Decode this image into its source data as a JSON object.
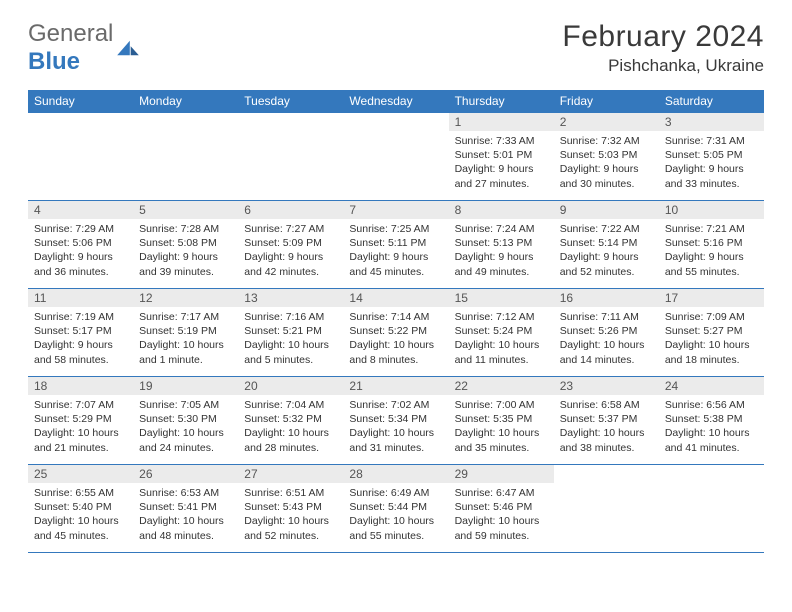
{
  "brand": {
    "word1": "General",
    "word2": "Blue"
  },
  "title": "February 2024",
  "location": "Pishchanka, Ukraine",
  "colors": {
    "headerBg": "#3478bd",
    "headerText": "#ffffff",
    "dayNumBg": "#ebebeb",
    "dayNumText": "#555555",
    "bodyText": "#333333",
    "rule": "#3478bd",
    "logoGray": "#6a6a6a",
    "logoBlue": "#3478bd"
  },
  "weekdays": [
    "Sunday",
    "Monday",
    "Tuesday",
    "Wednesday",
    "Thursday",
    "Friday",
    "Saturday"
  ],
  "weeks": [
    [
      null,
      null,
      null,
      null,
      {
        "n": "1",
        "sunrise": "Sunrise: 7:33 AM",
        "sunset": "Sunset: 5:01 PM",
        "day1": "Daylight: 9 hours",
        "day2": "and 27 minutes."
      },
      {
        "n": "2",
        "sunrise": "Sunrise: 7:32 AM",
        "sunset": "Sunset: 5:03 PM",
        "day1": "Daylight: 9 hours",
        "day2": "and 30 minutes."
      },
      {
        "n": "3",
        "sunrise": "Sunrise: 7:31 AM",
        "sunset": "Sunset: 5:05 PM",
        "day1": "Daylight: 9 hours",
        "day2": "and 33 minutes."
      }
    ],
    [
      {
        "n": "4",
        "sunrise": "Sunrise: 7:29 AM",
        "sunset": "Sunset: 5:06 PM",
        "day1": "Daylight: 9 hours",
        "day2": "and 36 minutes."
      },
      {
        "n": "5",
        "sunrise": "Sunrise: 7:28 AM",
        "sunset": "Sunset: 5:08 PM",
        "day1": "Daylight: 9 hours",
        "day2": "and 39 minutes."
      },
      {
        "n": "6",
        "sunrise": "Sunrise: 7:27 AM",
        "sunset": "Sunset: 5:09 PM",
        "day1": "Daylight: 9 hours",
        "day2": "and 42 minutes."
      },
      {
        "n": "7",
        "sunrise": "Sunrise: 7:25 AM",
        "sunset": "Sunset: 5:11 PM",
        "day1": "Daylight: 9 hours",
        "day2": "and 45 minutes."
      },
      {
        "n": "8",
        "sunrise": "Sunrise: 7:24 AM",
        "sunset": "Sunset: 5:13 PM",
        "day1": "Daylight: 9 hours",
        "day2": "and 49 minutes."
      },
      {
        "n": "9",
        "sunrise": "Sunrise: 7:22 AM",
        "sunset": "Sunset: 5:14 PM",
        "day1": "Daylight: 9 hours",
        "day2": "and 52 minutes."
      },
      {
        "n": "10",
        "sunrise": "Sunrise: 7:21 AM",
        "sunset": "Sunset: 5:16 PM",
        "day1": "Daylight: 9 hours",
        "day2": "and 55 minutes."
      }
    ],
    [
      {
        "n": "11",
        "sunrise": "Sunrise: 7:19 AM",
        "sunset": "Sunset: 5:17 PM",
        "day1": "Daylight: 9 hours",
        "day2": "and 58 minutes."
      },
      {
        "n": "12",
        "sunrise": "Sunrise: 7:17 AM",
        "sunset": "Sunset: 5:19 PM",
        "day1": "Daylight: 10 hours",
        "day2": "and 1 minute."
      },
      {
        "n": "13",
        "sunrise": "Sunrise: 7:16 AM",
        "sunset": "Sunset: 5:21 PM",
        "day1": "Daylight: 10 hours",
        "day2": "and 5 minutes."
      },
      {
        "n": "14",
        "sunrise": "Sunrise: 7:14 AM",
        "sunset": "Sunset: 5:22 PM",
        "day1": "Daylight: 10 hours",
        "day2": "and 8 minutes."
      },
      {
        "n": "15",
        "sunrise": "Sunrise: 7:12 AM",
        "sunset": "Sunset: 5:24 PM",
        "day1": "Daylight: 10 hours",
        "day2": "and 11 minutes."
      },
      {
        "n": "16",
        "sunrise": "Sunrise: 7:11 AM",
        "sunset": "Sunset: 5:26 PM",
        "day1": "Daylight: 10 hours",
        "day2": "and 14 minutes."
      },
      {
        "n": "17",
        "sunrise": "Sunrise: 7:09 AM",
        "sunset": "Sunset: 5:27 PM",
        "day1": "Daylight: 10 hours",
        "day2": "and 18 minutes."
      }
    ],
    [
      {
        "n": "18",
        "sunrise": "Sunrise: 7:07 AM",
        "sunset": "Sunset: 5:29 PM",
        "day1": "Daylight: 10 hours",
        "day2": "and 21 minutes."
      },
      {
        "n": "19",
        "sunrise": "Sunrise: 7:05 AM",
        "sunset": "Sunset: 5:30 PM",
        "day1": "Daylight: 10 hours",
        "day2": "and 24 minutes."
      },
      {
        "n": "20",
        "sunrise": "Sunrise: 7:04 AM",
        "sunset": "Sunset: 5:32 PM",
        "day1": "Daylight: 10 hours",
        "day2": "and 28 minutes."
      },
      {
        "n": "21",
        "sunrise": "Sunrise: 7:02 AM",
        "sunset": "Sunset: 5:34 PM",
        "day1": "Daylight: 10 hours",
        "day2": "and 31 minutes."
      },
      {
        "n": "22",
        "sunrise": "Sunrise: 7:00 AM",
        "sunset": "Sunset: 5:35 PM",
        "day1": "Daylight: 10 hours",
        "day2": "and 35 minutes."
      },
      {
        "n": "23",
        "sunrise": "Sunrise: 6:58 AM",
        "sunset": "Sunset: 5:37 PM",
        "day1": "Daylight: 10 hours",
        "day2": "and 38 minutes."
      },
      {
        "n": "24",
        "sunrise": "Sunrise: 6:56 AM",
        "sunset": "Sunset: 5:38 PM",
        "day1": "Daylight: 10 hours",
        "day2": "and 41 minutes."
      }
    ],
    [
      {
        "n": "25",
        "sunrise": "Sunrise: 6:55 AM",
        "sunset": "Sunset: 5:40 PM",
        "day1": "Daylight: 10 hours",
        "day2": "and 45 minutes."
      },
      {
        "n": "26",
        "sunrise": "Sunrise: 6:53 AM",
        "sunset": "Sunset: 5:41 PM",
        "day1": "Daylight: 10 hours",
        "day2": "and 48 minutes."
      },
      {
        "n": "27",
        "sunrise": "Sunrise: 6:51 AM",
        "sunset": "Sunset: 5:43 PM",
        "day1": "Daylight: 10 hours",
        "day2": "and 52 minutes."
      },
      {
        "n": "28",
        "sunrise": "Sunrise: 6:49 AM",
        "sunset": "Sunset: 5:44 PM",
        "day1": "Daylight: 10 hours",
        "day2": "and 55 minutes."
      },
      {
        "n": "29",
        "sunrise": "Sunrise: 6:47 AM",
        "sunset": "Sunset: 5:46 PM",
        "day1": "Daylight: 10 hours",
        "day2": "and 59 minutes."
      },
      null,
      null
    ]
  ]
}
